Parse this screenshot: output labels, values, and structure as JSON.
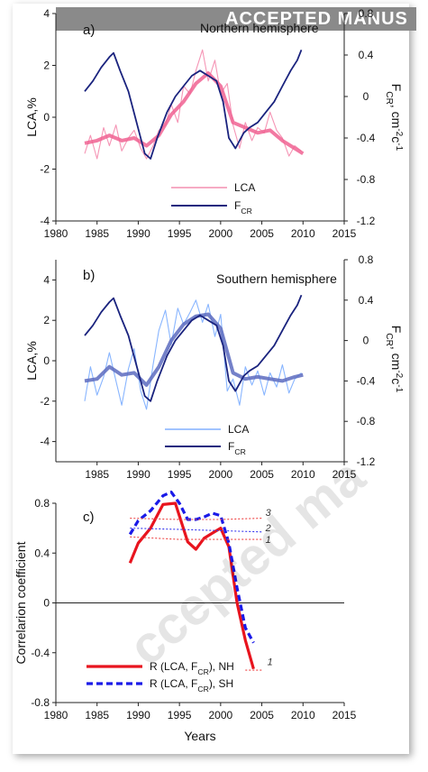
{
  "banner_text": "ACCEPTED MANUS",
  "watermark_text": "ccepted ma",
  "chart_data": [
    {
      "type": "line",
      "panel": "a)",
      "title": "Northern hemisphere",
      "xlabel": "",
      "ylabel": "LCA,%",
      "y2label": "F_CR, cm^-2c^-1",
      "xlim": [
        1980,
        2015
      ],
      "ylim": [
        -4,
        4
      ],
      "y2lim": [
        -1.2,
        0.8
      ],
      "xticks": [
        1980,
        1985,
        1990,
        1995,
        2000,
        2005,
        2010,
        2015
      ],
      "yticks": [
        -4,
        -2,
        0,
        2,
        4
      ],
      "y2ticks": [
        -1.2,
        -0.8,
        -0.4,
        0,
        0.4,
        0.8
      ],
      "legend": [
        "LCA",
        "F_CR"
      ],
      "series": [
        {
          "name": "LCA",
          "style": "raw",
          "color": "#f48fb1",
          "x": [
            1983.5,
            1984.2,
            1985,
            1985.8,
            1986.5,
            1987.3,
            1988,
            1988.8,
            1989.5,
            1990.3,
            1991,
            1991.8,
            1992.5,
            1993.3,
            1994,
            1994.8,
            1995.5,
            1996.3,
            1997,
            1997.8,
            1998.5,
            1999.3,
            2000,
            2000.8,
            2001.5,
            2002.3,
            2003,
            2003.8,
            2004.5,
            2005.3,
            2006,
            2006.8,
            2007.5,
            2008.3,
            2009,
            2009.8
          ],
          "y": [
            -1.4,
            -0.7,
            -1.6,
            -0.4,
            -1.1,
            -0.3,
            -1.3,
            -0.8,
            -0.5,
            -1.2,
            -1.6,
            -1.1,
            -0.5,
            -0.3,
            0.5,
            -0.2,
            1.2,
            0.9,
            1.8,
            2.6,
            1.4,
            2.2,
            0.9,
            1.3,
            -0.3,
            -1.2,
            -0.2,
            -0.9,
            -0.4,
            -0.6,
            0.2,
            -0.5,
            -0.8,
            -1.5,
            -1.1,
            -1.3
          ]
        },
        {
          "name": "LCA (smoothed)",
          "style": "smooth",
          "color": "#f06292",
          "x": [
            1983.5,
            1985,
            1986.5,
            1988,
            1989.5,
            1991,
            1992.5,
            1994,
            1995.5,
            1997,
            1998.5,
            2000,
            2001.5,
            2003,
            2004.5,
            2006,
            2007.5,
            2009,
            2010
          ],
          "y": [
            -1.0,
            -0.9,
            -0.7,
            -0.9,
            -0.8,
            -1.1,
            -0.7,
            0.1,
            0.6,
            1.3,
            1.7,
            1.2,
            -0.2,
            -0.4,
            -0.6,
            -0.5,
            -0.9,
            -1.2,
            -1.4
          ]
        },
        {
          "name": "F_CR",
          "axis": "y2",
          "color": "#1a237e",
          "x": [
            1983.5,
            1984.5,
            1985.5,
            1986.5,
            1987,
            1987.8,
            1988.8,
            1989.8,
            1990.8,
            1991.5,
            1992.3,
            1993.5,
            1994.5,
            1995.5,
            1996.5,
            1997.5,
            1998.5,
            1999.5,
            2000.3,
            2001,
            2001.8,
            2002.8,
            2003.5,
            2004.5,
            2005.5,
            2006.5,
            2007.5,
            2008.5,
            2009.3,
            2009.8
          ],
          "y": [
            0.05,
            0.15,
            0.28,
            0.38,
            0.42,
            0.25,
            0.05,
            -0.25,
            -0.55,
            -0.6,
            -0.4,
            -0.15,
            0.0,
            0.1,
            0.2,
            0.25,
            0.2,
            0.15,
            -0.05,
            -0.4,
            -0.5,
            -0.35,
            -0.3,
            -0.25,
            -0.15,
            -0.05,
            0.1,
            0.25,
            0.35,
            0.45
          ]
        }
      ]
    },
    {
      "type": "line",
      "panel": "b)",
      "title": "Southern hemisphere",
      "xlabel": "",
      "ylabel": "LCA,%",
      "y2label": "F_CR, cm^-2c^-1",
      "xlim": [
        1980,
        2015
      ],
      "ylim": [
        -5,
        5
      ],
      "y2lim": [
        -1.2,
        0.8
      ],
      "xticks": [
        1985,
        1990,
        1995,
        2000,
        2005,
        2010,
        2015
      ],
      "yticks": [
        -4,
        -2,
        0,
        2,
        4
      ],
      "y2ticks": [
        -1.2,
        -0.8,
        -0.4,
        0,
        0.4,
        0.8
      ],
      "legend": [
        "LCA",
        "F_CR"
      ],
      "series": [
        {
          "name": "LCA",
          "style": "raw",
          "color": "#82b1ff",
          "x": [
            1983.5,
            1984.2,
            1985,
            1985.8,
            1986.5,
            1987.3,
            1988,
            1988.8,
            1989.5,
            1990.3,
            1991,
            1991.8,
            1992.5,
            1993.3,
            1994,
            1994.8,
            1995.5,
            1996.3,
            1997,
            1997.8,
            1998.5,
            1999.3,
            2000,
            2000.8,
            2001.5,
            2002.3,
            2003,
            2003.8,
            2004.5,
            2005.3,
            2006,
            2006.8,
            2007.5,
            2008.3,
            2009,
            2009.8
          ],
          "y": [
            -2.0,
            -0.3,
            -1.7,
            -0.8,
            0.4,
            -1.0,
            -2.2,
            -0.4,
            0.6,
            -1.5,
            -2.4,
            -0.2,
            1.5,
            2.5,
            0.8,
            2.6,
            1.8,
            2.4,
            3.0,
            1.9,
            2.8,
            1.2,
            2.3,
            -1.5,
            -0.9,
            -2.2,
            -0.3,
            -1.2,
            -0.5,
            -1.7,
            -0.6,
            -1.3,
            -0.2,
            -1.6,
            -0.9,
            -0.6
          ]
        },
        {
          "name": "LCA (smoothed)",
          "style": "smooth",
          "color": "#5c6bc0",
          "x": [
            1983.5,
            1985,
            1986.5,
            1988,
            1989.5,
            1991,
            1992.5,
            1994,
            1995.5,
            1997,
            1998.5,
            2000,
            2001.5,
            2003,
            2004.5,
            2006,
            2007.5,
            2009,
            2010
          ],
          "y": [
            -1.0,
            -0.9,
            -0.3,
            -0.7,
            -0.6,
            -1.2,
            -0.3,
            1.0,
            1.8,
            2.2,
            2.3,
            1.6,
            -0.6,
            -0.9,
            -0.8,
            -0.9,
            -1.0,
            -0.8,
            -0.7
          ]
        },
        {
          "name": "F_CR",
          "axis": "y2",
          "color": "#1a237e",
          "x": [
            1983.5,
            1984.5,
            1985.5,
            1986.5,
            1987,
            1987.8,
            1988.8,
            1989.8,
            1990.8,
            1991.5,
            1992.3,
            1993.5,
            1994.5,
            1995.5,
            1996.5,
            1997.5,
            1998.5,
            1999.5,
            2000.3,
            2001,
            2001.8,
            2002.8,
            2003.5,
            2004.5,
            2005.5,
            2006.5,
            2007.5,
            2008.5,
            2009.3,
            2009.8
          ],
          "y": [
            0.05,
            0.15,
            0.28,
            0.38,
            0.42,
            0.25,
            0.05,
            -0.25,
            -0.55,
            -0.6,
            -0.4,
            -0.15,
            0.0,
            0.1,
            0.2,
            0.25,
            0.2,
            0.15,
            -0.05,
            -0.4,
            -0.5,
            -0.35,
            -0.3,
            -0.25,
            -0.15,
            -0.05,
            0.1,
            0.25,
            0.35,
            0.45
          ]
        }
      ]
    },
    {
      "type": "line",
      "panel": "c)",
      "title": "",
      "xlabel": "Years",
      "ylabel": "Correlarion coefficient",
      "xlim": [
        1980,
        2015
      ],
      "ylim": [
        -0.8,
        0.8
      ],
      "xticks": [
        1980,
        1985,
        1990,
        1995,
        2000,
        2005,
        2010,
        2015
      ],
      "yticks": [
        -0.8,
        -0.4,
        0,
        0.4,
        0.8
      ],
      "legend": [
        "R (LCA, F_CR), NH",
        "R (LCA, F_CR), SH"
      ],
      "series": [
        {
          "name": "R (LCA, F_CR), NH",
          "color": "#e8141e",
          "dash": "solid",
          "x": [
            1989,
            1990,
            1991.5,
            1993,
            1994.5,
            1996,
            1997,
            1998,
            1999,
            2000,
            2001,
            2002,
            2003,
            2004
          ],
          "y": [
            0.32,
            0.48,
            0.6,
            0.79,
            0.8,
            0.49,
            0.43,
            0.52,
            0.56,
            0.6,
            0.45,
            0.0,
            -0.3,
            -0.53
          ]
        },
        {
          "name": "R (LCA, F_CR), SH",
          "color": "#1a1ae8",
          "dash": "dashed",
          "x": [
            1989,
            1990,
            1991.5,
            1993,
            1994,
            1995,
            1996,
            1997,
            1998,
            1999,
            2000,
            2001,
            2002,
            2003,
            2004
          ],
          "y": [
            0.55,
            0.66,
            0.74,
            0.86,
            0.89,
            0.8,
            0.67,
            0.67,
            0.69,
            0.72,
            0.7,
            0.48,
            0.12,
            -0.2,
            -0.32
          ]
        },
        {
          "name": "1",
          "color": "#ee4444",
          "dash": "dotted",
          "x": [
            1989,
            1995,
            2000,
            2005
          ],
          "y": [
            0.53,
            0.51,
            0.51,
            0.51
          ]
        },
        {
          "name": "2",
          "color": "#3333ee",
          "dash": "dotted",
          "x": [
            1989,
            1995,
            2000,
            2005
          ],
          "y": [
            0.6,
            0.59,
            0.58,
            0.57
          ]
        },
        {
          "name": "3",
          "color": "#ee4444",
          "dash": "dotted",
          "x": [
            1989,
            1995,
            2000,
            2005
          ],
          "y": [
            0.68,
            0.67,
            0.67,
            0.68
          ]
        },
        {
          "name": "1",
          "color": "#ee4444",
          "dash": "dotted",
          "x": [
            2003,
            2005
          ],
          "y": [
            -0.54,
            -0.54
          ]
        }
      ],
      "annotations": [
        "3",
        "2",
        "1",
        "1"
      ]
    }
  ]
}
